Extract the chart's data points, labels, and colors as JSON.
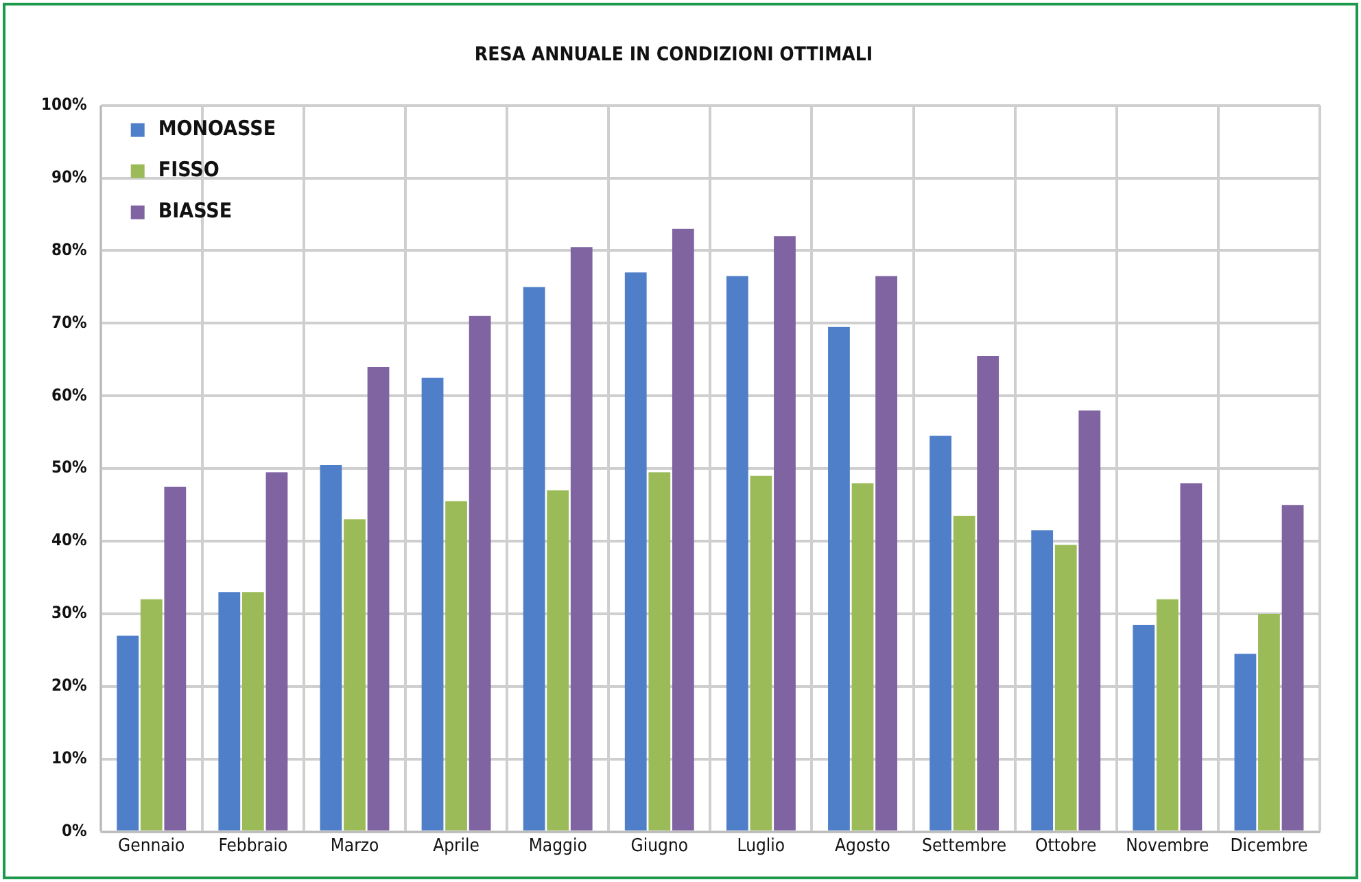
{
  "chart_data": {
    "type": "bar",
    "title": "RESA ANNUALE IN CONDIZIONI OTTIMALI",
    "categories": [
      "Gennaio",
      "Febbraio",
      "Marzo",
      "Aprile",
      "Maggio",
      "Giugno",
      "Luglio",
      "Agosto",
      "Settembre",
      "Ottobre",
      "Novembre",
      "Dicembre"
    ],
    "series": [
      {
        "name": "MONOASSE",
        "color": "#4f7fc9",
        "values": [
          27,
          33,
          50.5,
          62.5,
          75,
          77,
          76.5,
          69.5,
          54.5,
          41.5,
          28.5,
          24.5
        ]
      },
      {
        "name": "FISSO",
        "color": "#9bbb59",
        "values": [
          32,
          33,
          43,
          45.5,
          47,
          49.5,
          49,
          48,
          43.5,
          39.5,
          32,
          30
        ]
      },
      {
        "name": "BIASSE",
        "color": "#8064a2",
        "values": [
          47.5,
          49.5,
          64,
          71,
          80.5,
          83,
          82,
          76.5,
          65.5,
          58,
          48,
          45
        ]
      }
    ],
    "ylim": [
      0,
      100
    ],
    "yticks": [
      {
        "value": 0,
        "label": "0%"
      },
      {
        "value": 10,
        "label": "10%"
      },
      {
        "value": 20,
        "label": "20%"
      },
      {
        "value": 30,
        "label": "30%"
      },
      {
        "value": 40,
        "label": "40%"
      },
      {
        "value": 50,
        "label": "50%"
      },
      {
        "value": 60,
        "label": "60%"
      },
      {
        "value": 70,
        "label": "70%"
      },
      {
        "value": 80,
        "label": "80%"
      },
      {
        "value": 90,
        "label": "90%"
      },
      {
        "value": 100,
        "label": "100%"
      }
    ],
    "grid": true,
    "legend": "top left"
  }
}
